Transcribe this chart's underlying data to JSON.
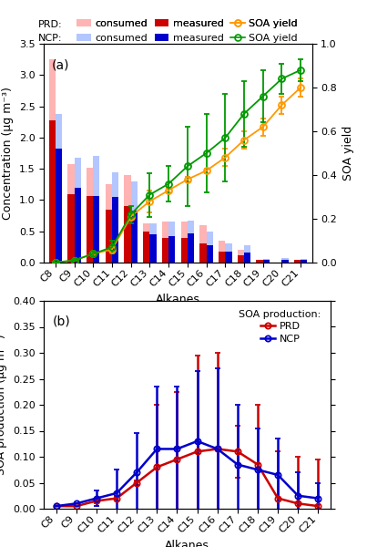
{
  "alkanes": [
    "C8",
    "C9",
    "C10",
    "C11",
    "C12",
    "C13",
    "C14",
    "C15",
    "C16",
    "C17",
    "C18",
    "C19",
    "C20",
    "C21"
  ],
  "prd_consumed": [
    3.25,
    1.57,
    1.52,
    1.25,
    1.4,
    0.62,
    0.65,
    0.65,
    0.6,
    0.35,
    0.2,
    0.05,
    0.0,
    0.05
  ],
  "prd_measured": [
    2.27,
    1.1,
    1.06,
    0.85,
    0.9,
    0.5,
    0.4,
    0.4,
    0.3,
    0.17,
    0.12,
    0.04,
    0.0,
    0.04
  ],
  "ncp_consumed": [
    2.38,
    1.67,
    1.7,
    1.45,
    1.3,
    0.63,
    0.66,
    0.67,
    0.5,
    0.3,
    0.28,
    0.065,
    0.07,
    0.065
  ],
  "ncp_measured": [
    1.82,
    1.2,
    1.07,
    1.05,
    0.83,
    0.45,
    0.43,
    0.46,
    0.28,
    0.17,
    0.16,
    0.04,
    0.04,
    0.04
  ],
  "prd_soa_yield": [
    0.0,
    0.01,
    0.04,
    0.06,
    0.21,
    0.28,
    0.33,
    0.38,
    0.42,
    0.48,
    0.56,
    0.62,
    0.72,
    0.8
  ],
  "prd_soa_yield_err": [
    0.0,
    0.0,
    0.005,
    0.01,
    0.01,
    0.05,
    0.01,
    0.01,
    0.01,
    0.04,
    0.04,
    0.04,
    0.04,
    0.04
  ],
  "ncp_soa_yield": [
    0.0,
    0.01,
    0.04,
    0.07,
    0.22,
    0.31,
    0.36,
    0.44,
    0.5,
    0.57,
    0.68,
    0.76,
    0.84,
    0.88
  ],
  "ncp_soa_yield_err": [
    0.0,
    0.0,
    0.01,
    0.03,
    0.04,
    0.1,
    0.08,
    0.18,
    0.18,
    0.2,
    0.15,
    0.12,
    0.07,
    0.05
  ],
  "prd_soa_prod": [
    0.005,
    0.005,
    0.015,
    0.02,
    0.05,
    0.08,
    0.095,
    0.11,
    0.115,
    0.11,
    0.085,
    0.02,
    0.01,
    0.005
  ],
  "prd_soa_prod_err": [
    0.0,
    0.0,
    0.005,
    0.005,
    0.005,
    0.12,
    0.13,
    0.185,
    0.185,
    0.05,
    0.115,
    0.09,
    0.09,
    0.09
  ],
  "ncp_soa_prod": [
    0.005,
    0.01,
    0.02,
    0.03,
    0.07,
    0.115,
    0.115,
    0.13,
    0.115,
    0.085,
    0.075,
    0.065,
    0.025,
    0.02
  ],
  "ncp_soa_prod_err": [
    0.0,
    0.0,
    0.015,
    0.045,
    0.075,
    0.12,
    0.12,
    0.135,
    0.155,
    0.115,
    0.08,
    0.07,
    0.045,
    0.03
  ],
  "color_prd_consumed": "#ffb3b3",
  "color_prd_measured": "#cc0000",
  "color_ncp_consumed": "#b3c6ff",
  "color_ncp_measured": "#0000cc",
  "color_prd_yield": "#ff9900",
  "color_ncp_yield": "#009900",
  "panel_a_ylabel": "Concentration (μg m⁻³)",
  "panel_a_ylabel2": "SOA yield",
  "panel_a_ylim": [
    0.0,
    3.5
  ],
  "panel_a_ylim2": [
    0.0,
    1.0
  ],
  "panel_b_ylabel": "SOA production (μg m⁻³)",
  "panel_b_ylim": [
    0.0,
    0.4
  ],
  "xlabel": "Alkanes",
  "title_a": "(a)",
  "title_b": "(b)"
}
